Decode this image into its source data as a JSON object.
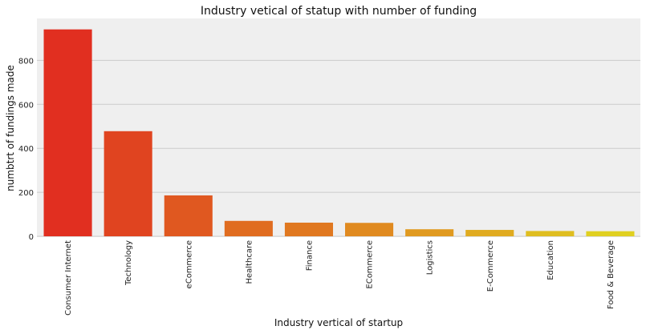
{
  "chart_data": {
    "type": "bar",
    "title": "Industry vetical of statup with number of funding",
    "xlabel": "Industry vertical of startup",
    "ylabel": "numbtrt of fundings made",
    "categories": [
      "Consumer Internet",
      "Technology",
      "eCommerce",
      "Healthcare",
      "Finance",
      "ECommerce",
      "Logistics",
      "E-Commerce",
      "Education",
      "Food & Beverage"
    ],
    "values": [
      941,
      478,
      186,
      70,
      62,
      61,
      32,
      29,
      24,
      23
    ],
    "yticks": [
      0,
      200,
      400,
      600,
      800
    ],
    "ylim": [
      0,
      990
    ],
    "grid": "horizontal",
    "background": "#efefef",
    "grid_color": "#cbcbcb",
    "bar_colors": [
      "#e12f20",
      "#e04420",
      "#e05820",
      "#e06c20",
      "#e07820",
      "#e08a20",
      "#e09a20",
      "#e0ab20",
      "#dfbe20",
      "#e0d020"
    ]
  }
}
